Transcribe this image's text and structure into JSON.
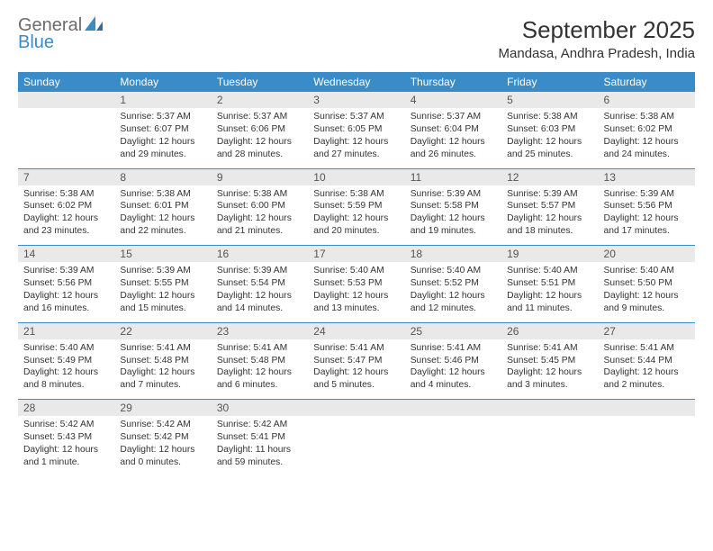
{
  "brand": {
    "word1": "General",
    "word2": "Blue",
    "color_gray": "#6b6b6b",
    "color_blue": "#3a8cc9"
  },
  "title": "September 2025",
  "location": "Mandasa, Andhra Pradesh, India",
  "colors": {
    "header_bg": "#3a8cc9",
    "header_fg": "#ffffff",
    "daynum_bg": "#e9e9e9",
    "text": "#333333",
    "rule": "#3a8cc9"
  },
  "typography": {
    "title_fontsize": 26,
    "location_fontsize": 15,
    "dayhead_fontsize": 12,
    "body_fontsize": 10.3
  },
  "dayNames": [
    "Sunday",
    "Monday",
    "Tuesday",
    "Wednesday",
    "Thursday",
    "Friday",
    "Saturday"
  ],
  "weeks": [
    [
      null,
      {
        "n": "1",
        "sr": "Sunrise: 5:37 AM",
        "ss": "Sunset: 6:07 PM",
        "dl": "Daylight: 12 hours and 29 minutes."
      },
      {
        "n": "2",
        "sr": "Sunrise: 5:37 AM",
        "ss": "Sunset: 6:06 PM",
        "dl": "Daylight: 12 hours and 28 minutes."
      },
      {
        "n": "3",
        "sr": "Sunrise: 5:37 AM",
        "ss": "Sunset: 6:05 PM",
        "dl": "Daylight: 12 hours and 27 minutes."
      },
      {
        "n": "4",
        "sr": "Sunrise: 5:37 AM",
        "ss": "Sunset: 6:04 PM",
        "dl": "Daylight: 12 hours and 26 minutes."
      },
      {
        "n": "5",
        "sr": "Sunrise: 5:38 AM",
        "ss": "Sunset: 6:03 PM",
        "dl": "Daylight: 12 hours and 25 minutes."
      },
      {
        "n": "6",
        "sr": "Sunrise: 5:38 AM",
        "ss": "Sunset: 6:02 PM",
        "dl": "Daylight: 12 hours and 24 minutes."
      }
    ],
    [
      {
        "n": "7",
        "sr": "Sunrise: 5:38 AM",
        "ss": "Sunset: 6:02 PM",
        "dl": "Daylight: 12 hours and 23 minutes."
      },
      {
        "n": "8",
        "sr": "Sunrise: 5:38 AM",
        "ss": "Sunset: 6:01 PM",
        "dl": "Daylight: 12 hours and 22 minutes."
      },
      {
        "n": "9",
        "sr": "Sunrise: 5:38 AM",
        "ss": "Sunset: 6:00 PM",
        "dl": "Daylight: 12 hours and 21 minutes."
      },
      {
        "n": "10",
        "sr": "Sunrise: 5:38 AM",
        "ss": "Sunset: 5:59 PM",
        "dl": "Daylight: 12 hours and 20 minutes."
      },
      {
        "n": "11",
        "sr": "Sunrise: 5:39 AM",
        "ss": "Sunset: 5:58 PM",
        "dl": "Daylight: 12 hours and 19 minutes."
      },
      {
        "n": "12",
        "sr": "Sunrise: 5:39 AM",
        "ss": "Sunset: 5:57 PM",
        "dl": "Daylight: 12 hours and 18 minutes."
      },
      {
        "n": "13",
        "sr": "Sunrise: 5:39 AM",
        "ss": "Sunset: 5:56 PM",
        "dl": "Daylight: 12 hours and 17 minutes."
      }
    ],
    [
      {
        "n": "14",
        "sr": "Sunrise: 5:39 AM",
        "ss": "Sunset: 5:56 PM",
        "dl": "Daylight: 12 hours and 16 minutes."
      },
      {
        "n": "15",
        "sr": "Sunrise: 5:39 AM",
        "ss": "Sunset: 5:55 PM",
        "dl": "Daylight: 12 hours and 15 minutes."
      },
      {
        "n": "16",
        "sr": "Sunrise: 5:39 AM",
        "ss": "Sunset: 5:54 PM",
        "dl": "Daylight: 12 hours and 14 minutes."
      },
      {
        "n": "17",
        "sr": "Sunrise: 5:40 AM",
        "ss": "Sunset: 5:53 PM",
        "dl": "Daylight: 12 hours and 13 minutes."
      },
      {
        "n": "18",
        "sr": "Sunrise: 5:40 AM",
        "ss": "Sunset: 5:52 PM",
        "dl": "Daylight: 12 hours and 12 minutes."
      },
      {
        "n": "19",
        "sr": "Sunrise: 5:40 AM",
        "ss": "Sunset: 5:51 PM",
        "dl": "Daylight: 12 hours and 11 minutes."
      },
      {
        "n": "20",
        "sr": "Sunrise: 5:40 AM",
        "ss": "Sunset: 5:50 PM",
        "dl": "Daylight: 12 hours and 9 minutes."
      }
    ],
    [
      {
        "n": "21",
        "sr": "Sunrise: 5:40 AM",
        "ss": "Sunset: 5:49 PM",
        "dl": "Daylight: 12 hours and 8 minutes."
      },
      {
        "n": "22",
        "sr": "Sunrise: 5:41 AM",
        "ss": "Sunset: 5:48 PM",
        "dl": "Daylight: 12 hours and 7 minutes."
      },
      {
        "n": "23",
        "sr": "Sunrise: 5:41 AM",
        "ss": "Sunset: 5:48 PM",
        "dl": "Daylight: 12 hours and 6 minutes."
      },
      {
        "n": "24",
        "sr": "Sunrise: 5:41 AM",
        "ss": "Sunset: 5:47 PM",
        "dl": "Daylight: 12 hours and 5 minutes."
      },
      {
        "n": "25",
        "sr": "Sunrise: 5:41 AM",
        "ss": "Sunset: 5:46 PM",
        "dl": "Daylight: 12 hours and 4 minutes."
      },
      {
        "n": "26",
        "sr": "Sunrise: 5:41 AM",
        "ss": "Sunset: 5:45 PM",
        "dl": "Daylight: 12 hours and 3 minutes."
      },
      {
        "n": "27",
        "sr": "Sunrise: 5:41 AM",
        "ss": "Sunset: 5:44 PM",
        "dl": "Daylight: 12 hours and 2 minutes."
      }
    ],
    [
      {
        "n": "28",
        "sr": "Sunrise: 5:42 AM",
        "ss": "Sunset: 5:43 PM",
        "dl": "Daylight: 12 hours and 1 minute."
      },
      {
        "n": "29",
        "sr": "Sunrise: 5:42 AM",
        "ss": "Sunset: 5:42 PM",
        "dl": "Daylight: 12 hours and 0 minutes."
      },
      {
        "n": "30",
        "sr": "Sunrise: 5:42 AM",
        "ss": "Sunset: 5:41 PM",
        "dl": "Daylight: 11 hours and 59 minutes."
      },
      null,
      null,
      null,
      null
    ]
  ]
}
